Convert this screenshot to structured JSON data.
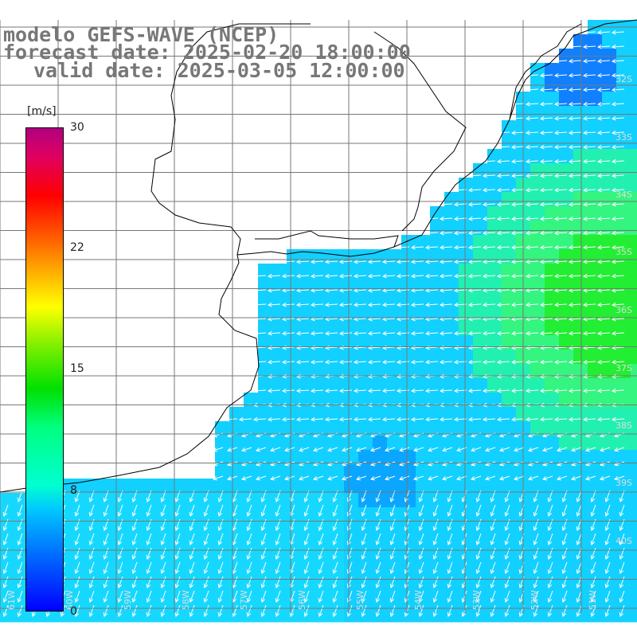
{
  "title": {
    "model": "modelo GEFS-WAVE (NCEP)",
    "forecast": "forecast date: 2025-02-20 18:00:00",
    "valid": "valid date: 2025-03-05 12:00:00"
  },
  "colorbar": {
    "units": "[m/s]",
    "ticks": [
      "30",
      "22",
      "15",
      "8",
      "0"
    ],
    "colors": [
      "#0000ff",
      "#0070ff",
      "#00c8ff",
      "#00ffd0",
      "#00ff80",
      "#00e000",
      "#7ff000",
      "#ffff00",
      "#ffb000",
      "#ff6000",
      "#ff0000",
      "#e00060",
      "#b00080"
    ]
  },
  "map": {
    "lat_labels": [
      "32S",
      "33S",
      "34S",
      "35S",
      "36S",
      "37S",
      "38S",
      "39S",
      "40S"
    ],
    "lon_labels": [
      "61W",
      "60W",
      "59W",
      "58W",
      "57W",
      "56W",
      "55W",
      "54W",
      "53W",
      "52W",
      "51W"
    ],
    "colors": {
      "land": "#ffffff",
      "grid": "#777777",
      "coast": "#000000",
      "arrow": "#ffffff"
    }
  }
}
